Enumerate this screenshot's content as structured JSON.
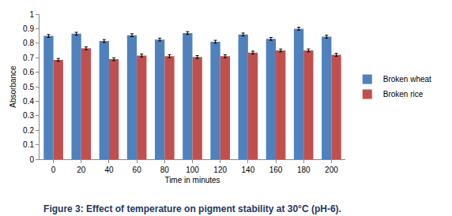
{
  "chart_data": {
    "type": "bar",
    "title": "Figure 3: Effect of temperature on pigment stability at 30°C (pH-6).",
    "x_label": "Time in minutes",
    "y_label": "Absorbance",
    "categories": [
      "0",
      "20",
      "40",
      "60",
      "80",
      "100",
      "120",
      "140",
      "160",
      "180",
      "200"
    ],
    "series": [
      {
        "name": "Broken wheat",
        "color": "#4f81bd",
        "values": [
          0.85,
          0.865,
          0.815,
          0.855,
          0.825,
          0.87,
          0.81,
          0.86,
          0.83,
          0.9,
          0.845
        ],
        "errors": [
          0.01,
          0.01,
          0.01,
          0.01,
          0.01,
          0.01,
          0.01,
          0.01,
          0.01,
          0.01,
          0.01
        ]
      },
      {
        "name": "Broken rice",
        "color": "#c0504d",
        "values": [
          0.685,
          0.765,
          0.69,
          0.715,
          0.71,
          0.705,
          0.71,
          0.735,
          0.75,
          0.75,
          0.72
        ],
        "errors": [
          0.01,
          0.01,
          0.01,
          0.01,
          0.01,
          0.01,
          0.01,
          0.01,
          0.01,
          0.01,
          0.01
        ]
      }
    ],
    "ylim": [
      0,
      1
    ],
    "yticks": [
      0,
      0.1,
      0.2,
      0.3,
      0.4,
      0.5,
      0.6,
      0.7,
      0.8,
      0.9,
      1
    ],
    "grid": false,
    "legend": "right"
  }
}
